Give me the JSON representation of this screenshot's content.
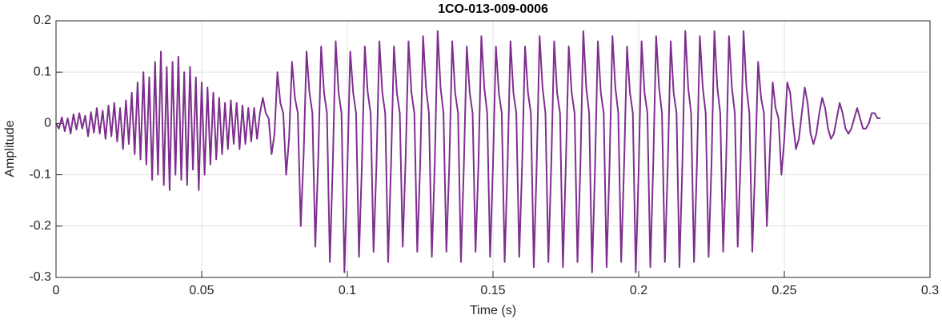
{
  "chart_data": {
    "type": "line",
    "title": "1CO-013-009-0006",
    "x_label": "Time (s)",
    "y_label": "Amplitude",
    "x": [
      0,
      0.001,
      0.002,
      0.003,
      0.004,
      0.005,
      0.006,
      0.007,
      0.008,
      0.009,
      0.01,
      0.011,
      0.012,
      0.013,
      0.014,
      0.015,
      0.016,
      0.017,
      0.018,
      0.019,
      0.02,
      0.021,
      0.022,
      0.023,
      0.024,
      0.025,
      0.026,
      0.027,
      0.028,
      0.029,
      0.03,
      0.031,
      0.032,
      0.033,
      0.034,
      0.035,
      0.036,
      0.037,
      0.038,
      0.039,
      0.04,
      0.041,
      0.042,
      0.043,
      0.044,
      0.045,
      0.046,
      0.047,
      0.048,
      0.049,
      0.05,
      0.051,
      0.052,
      0.053,
      0.054,
      0.055,
      0.056,
      0.057,
      0.058,
      0.059,
      0.06,
      0.061,
      0.062,
      0.063,
      0.064,
      0.065,
      0.066,
      0.067,
      0.068,
      0.069,
      0.07,
      0.071,
      0.072,
      0.073,
      0.074,
      0.075,
      0.076,
      0.077,
      0.078,
      0.079,
      0.08,
      0.081,
      0.082,
      0.083,
      0.084,
      0.085,
      0.086,
      0.087,
      0.088,
      0.089,
      0.09,
      0.091,
      0.092,
      0.093,
      0.094,
      0.095,
      0.096,
      0.097,
      0.098,
      0.099,
      0.1,
      0.101,
      0.102,
      0.103,
      0.104,
      0.105,
      0.106,
      0.107,
      0.108,
      0.109,
      0.11,
      0.111,
      0.112,
      0.113,
      0.114,
      0.115,
      0.116,
      0.117,
      0.118,
      0.119,
      0.12,
      0.121,
      0.122,
      0.123,
      0.124,
      0.125,
      0.126,
      0.127,
      0.128,
      0.129,
      0.13,
      0.131,
      0.132,
      0.133,
      0.134,
      0.135,
      0.136,
      0.137,
      0.138,
      0.139,
      0.14,
      0.141,
      0.142,
      0.143,
      0.144,
      0.145,
      0.146,
      0.147,
      0.148,
      0.149,
      0.15,
      0.151,
      0.152,
      0.153,
      0.154,
      0.155,
      0.156,
      0.157,
      0.158,
      0.159,
      0.16,
      0.161,
      0.162,
      0.163,
      0.164,
      0.165,
      0.166,
      0.167,
      0.168,
      0.169,
      0.17,
      0.171,
      0.172,
      0.173,
      0.174,
      0.175,
      0.176,
      0.177,
      0.178,
      0.179,
      0.18,
      0.181,
      0.182,
      0.183,
      0.184,
      0.185,
      0.186,
      0.187,
      0.188,
      0.189,
      0.19,
      0.191,
      0.192,
      0.193,
      0.194,
      0.195,
      0.196,
      0.197,
      0.198,
      0.199,
      0.2,
      0.201,
      0.202,
      0.203,
      0.204,
      0.205,
      0.206,
      0.207,
      0.208,
      0.209,
      0.21,
      0.211,
      0.212,
      0.213,
      0.214,
      0.215,
      0.216,
      0.217,
      0.218,
      0.219,
      0.22,
      0.221,
      0.222,
      0.223,
      0.224,
      0.225,
      0.226,
      0.227,
      0.228,
      0.229,
      0.23,
      0.231,
      0.232,
      0.233,
      0.234,
      0.235,
      0.236,
      0.237,
      0.238,
      0.239,
      0.24,
      0.241,
      0.242,
      0.243,
      0.244,
      0.245,
      0.246,
      0.247,
      0.248,
      0.249,
      0.25,
      0.251,
      0.252,
      0.253,
      0.254,
      0.255,
      0.256,
      0.257,
      0.258,
      0.259,
      0.26,
      0.261,
      0.262,
      0.263,
      0.264,
      0.265,
      0.266,
      0.267,
      0.268,
      0.269,
      0.27,
      0.271,
      0.272,
      0.273,
      0.274,
      0.275,
      0.276,
      0.277,
      0.278,
      0.279,
      0.28,
      0.281,
      0.282,
      0.283
    ],
    "series": [
      {
        "color": "#7e2f8e",
        "values": [
          0,
          -0.01,
          0.012,
          -0.015,
          0.01,
          -0.02,
          0.018,
          -0.012,
          0.02,
          -0.01,
          0.015,
          -0.025,
          0.022,
          -0.018,
          0.03,
          -0.02,
          0.025,
          -0.03,
          0.035,
          -0.025,
          0.04,
          -0.035,
          0.03,
          -0.05,
          0.045,
          -0.04,
          0.06,
          -0.06,
          0.08,
          -0.07,
          0.1,
          -0.08,
          0.09,
          -0.11,
          0.12,
          -0.1,
          0.14,
          -0.12,
          0.11,
          -0.13,
          0.12,
          -0.1,
          0.13,
          -0.11,
          0.1,
          -0.12,
          0.11,
          -0.09,
          0.09,
          -0.13,
          0.08,
          -0.1,
          0.07,
          -0.08,
          0.06,
          -0.07,
          0.05,
          -0.06,
          0.04,
          -0.05,
          0.045,
          -0.04,
          0.04,
          -0.05,
          0.035,
          -0.04,
          0.03,
          -0.035,
          0.03,
          -0.03,
          0.02,
          0.05,
          0.02,
          0.01,
          -0.06,
          -0.02,
          0.1,
          0.04,
          0.02,
          -0.1,
          -0.03,
          0.12,
          0.05,
          0.02,
          -0.2,
          -0.06,
          0.14,
          0.06,
          0.02,
          -0.24,
          -0.07,
          0.15,
          0.06,
          0.02,
          -0.27,
          -0.08,
          0.16,
          0.06,
          0.02,
          -0.29,
          -0.09,
          0.14,
          0.06,
          0.02,
          -0.26,
          -0.08,
          0.15,
          0.06,
          0.02,
          -0.25,
          -0.08,
          0.16,
          0.06,
          0.02,
          -0.27,
          -0.08,
          0.15,
          0.06,
          0.02,
          -0.24,
          -0.07,
          0.16,
          0.06,
          0.02,
          -0.25,
          -0.08,
          0.17,
          0.07,
          0.02,
          -0.26,
          -0.08,
          0.18,
          0.07,
          0.02,
          -0.25,
          -0.08,
          0.16,
          0.06,
          0.02,
          -0.27,
          -0.08,
          0.15,
          0.06,
          0.02,
          -0.25,
          -0.08,
          0.17,
          0.07,
          0.02,
          -0.26,
          -0.08,
          0.15,
          0.06,
          0.02,
          -0.27,
          -0.08,
          0.16,
          0.06,
          0.02,
          -0.26,
          -0.08,
          0.15,
          0.06,
          0.02,
          -0.28,
          -0.08,
          0.17,
          0.07,
          0.02,
          -0.27,
          -0.08,
          0.16,
          0.06,
          0.02,
          -0.28,
          -0.08,
          0.15,
          0.06,
          0.02,
          -0.27,
          -0.08,
          0.18,
          0.07,
          0.02,
          -0.29,
          -0.09,
          0.16,
          0.06,
          0.02,
          -0.28,
          -0.08,
          0.17,
          0.07,
          0.02,
          -0.27,
          -0.08,
          0.15,
          0.06,
          0.02,
          -0.29,
          -0.09,
          0.16,
          0.06,
          0.02,
          -0.28,
          -0.08,
          0.17,
          0.07,
          0.02,
          -0.27,
          -0.08,
          0.16,
          0.06,
          0.02,
          -0.28,
          -0.08,
          0.18,
          0.07,
          0.02,
          -0.27,
          -0.08,
          0.17,
          0.07,
          0.02,
          -0.26,
          -0.08,
          0.18,
          0.07,
          0.02,
          -0.25,
          -0.08,
          0.17,
          0.07,
          0.02,
          -0.24,
          -0.07,
          0.18,
          0.07,
          0.02,
          -0.25,
          -0.08,
          0.12,
          0.05,
          0.02,
          -0.2,
          -0.06,
          0.08,
          0.03,
          0.01,
          -0.1,
          -0.03,
          0.08,
          0.06,
          0,
          -0.05,
          -0.03,
          0.02,
          0.07,
          0.04,
          -0.02,
          -0.04,
          -0.02,
          0.02,
          0.05,
          0.03,
          -0.01,
          -0.03,
          -0.02,
          0.01,
          0.04,
          0.02,
          -0.01,
          -0.02,
          -0.01,
          0.01,
          0.03,
          0.01,
          -0.01,
          -0.01,
          0,
          0.02,
          0.02,
          0.01,
          0.01
        ]
      }
    ],
    "xlim": [
      0,
      0.3
    ],
    "xticks": [
      0,
      0.05,
      0.1,
      0.15,
      0.2,
      0.25,
      0.3
    ],
    "ylim": [
      -0.3,
      0.2
    ],
    "yticks": [
      -0.3,
      -0.2,
      -0.1,
      0,
      0.1,
      0.2
    ],
    "grid": true
  }
}
